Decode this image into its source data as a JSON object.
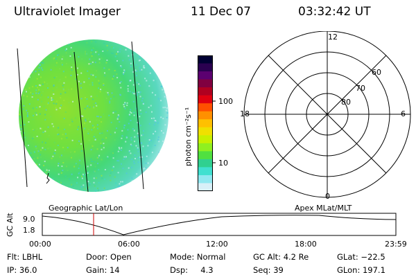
{
  "header": {
    "title": "Ultraviolet Imager",
    "date": "11 Dec 07",
    "time": "03:32:42 UT"
  },
  "colorbar": {
    "unit_label": "photon cm⁻²s⁻¹",
    "tick_labels": [
      "100",
      "10"
    ],
    "colors": [
      "#000033",
      "#2a0050",
      "#5b0070",
      "#800040",
      "#b00020",
      "#e00010",
      "#ff5000",
      "#ff9000",
      "#ffc000",
      "#f0e000",
      "#c8f000",
      "#90f020",
      "#50e040",
      "#30d090",
      "#40e0d0",
      "#90e8f0",
      "#d8f0f8"
    ]
  },
  "polar": {
    "mlt_labels": {
      "top": "12",
      "right": "6",
      "left": "18",
      "bottom": "0"
    },
    "lat_labels": [
      "60",
      "70",
      "80"
    ]
  },
  "left_panel_label": "Geographic Lat/Lon",
  "right_panel_label": "Apex MLat/MLT",
  "altitude_plot": {
    "axis_label": "GC Alt",
    "y_labels": [
      "9.0",
      "1.8"
    ],
    "x_labels": [
      "00:00",
      "06:00",
      "12:00",
      "18:00",
      "23:59"
    ],
    "marker_color": "#cc0000"
  },
  "info": {
    "filter": "Flt: LBHL",
    "ip": "IP: 36.0",
    "door": "Door: Open",
    "gain": "Gain: 14",
    "mode": "Mode: Normal",
    "dsp": "Dsp:     4.3",
    "gc_alt": "GC Alt: 4.2 Re",
    "seq": "Seq: 39",
    "glat": "GLat: −22.5",
    "glon": "GLon: 197.1"
  }
}
